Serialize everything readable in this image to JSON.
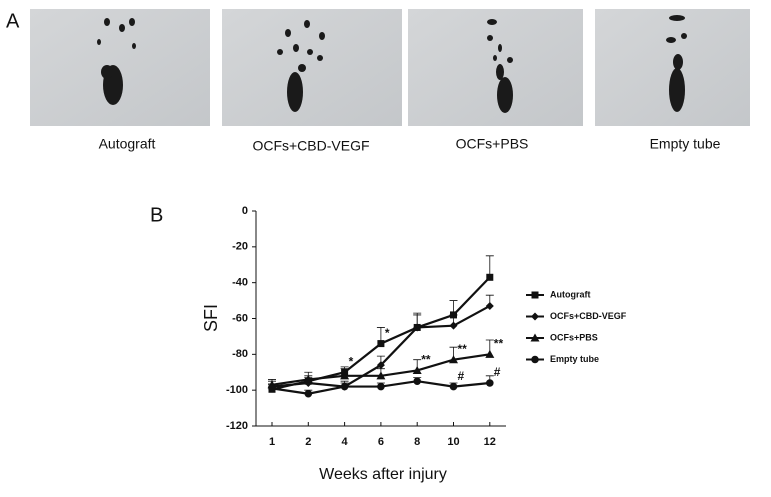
{
  "panel_a": {
    "letter": "A",
    "labels": [
      "Autograft",
      "OCFs+CBD-VEGF",
      "OCFs+PBS",
      "Empty tube"
    ]
  },
  "panel_b": {
    "letter": "B"
  },
  "chart_data": {
    "type": "line",
    "xlabel": "Weeks after injury",
    "ylabel": "SFI",
    "categories": [
      "1",
      "2",
      "4",
      "6",
      "8",
      "10",
      "12"
    ],
    "ylim": [
      -120,
      0
    ],
    "yticks": [
      0,
      -20,
      -40,
      -60,
      -80,
      -100,
      -120
    ],
    "series": [
      {
        "name": "Autograft",
        "color": "#111111",
        "marker": "square",
        "values": [
          -99.5,
          -95,
          -90,
          -74,
          -65,
          -58,
          -37
        ],
        "errors": [
          3,
          3,
          3,
          9,
          7,
          8,
          12
        ]
      },
      {
        "name": "OCFs+CBD-VEGF",
        "color": "#111111",
        "marker": "diamond",
        "values": [
          -98,
          -96,
          -98,
          -86,
          -65,
          -64,
          -53
        ],
        "errors": [
          3,
          3,
          3,
          5,
          8,
          6,
          6
        ]
      },
      {
        "name": "OCFs+PBS",
        "color": "#111111",
        "marker": "triangle",
        "values": [
          -97,
          -94,
          -92,
          -92,
          -89,
          -83,
          -80
        ],
        "errors": [
          3,
          4,
          4,
          4,
          6,
          7,
          8
        ]
      },
      {
        "name": "Empty tube",
        "color": "#111111",
        "marker": "circle",
        "values": [
          -99,
          -102,
          -98,
          -98,
          -95,
          -98,
          -96
        ],
        "errors": [
          2,
          2,
          2,
          2,
          2,
          2,
          4
        ]
      }
    ],
    "annotations": [
      {
        "text": "*",
        "x": "4",
        "series": "Autograft"
      },
      {
        "text": "*",
        "x": "6",
        "series": "Autograft"
      },
      {
        "text": "**",
        "x": "8",
        "series": "OCFs+PBS"
      },
      {
        "text": "**",
        "x": "10",
        "series": "OCFs+PBS"
      },
      {
        "text": "**",
        "x": "12",
        "series": "OCFs+PBS"
      },
      {
        "text": "#",
        "x": "10",
        "series": "Empty tube"
      },
      {
        "text": "#",
        "x": "12",
        "series": "Empty tube"
      }
    ]
  }
}
